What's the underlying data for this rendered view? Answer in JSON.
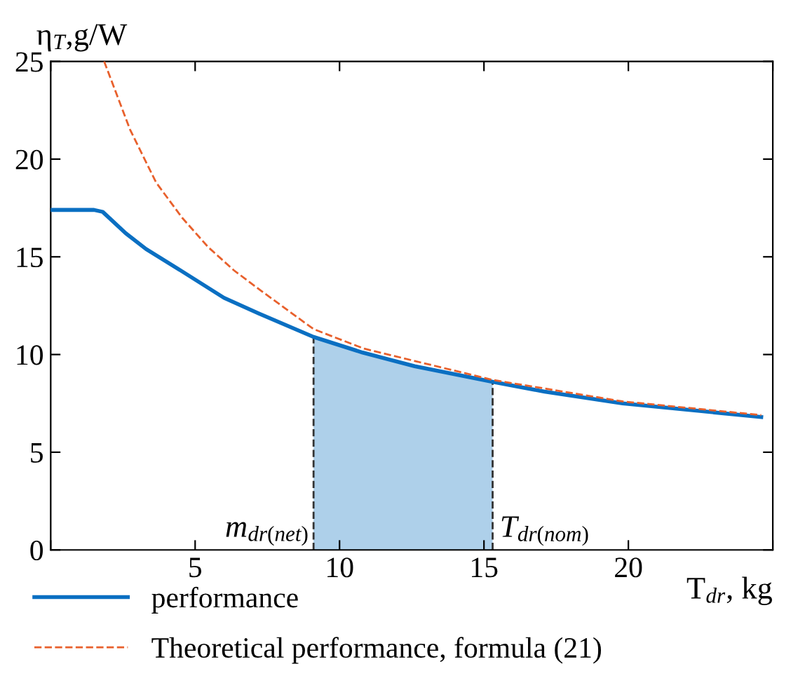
{
  "chart_data": {
    "type": "line",
    "ylabel": "η$_{T}$,g/W",
    "xlabel": "T$_{dr}$, kg",
    "xlim": [
      0,
      25
    ],
    "xticks": [
      {
        "value": 0,
        "label": null
      },
      5,
      10,
      15,
      20,
      {
        "value": 25,
        "label": null
      }
    ],
    "ylim": [
      0,
      25
    ],
    "yticks": [
      0,
      5,
      10,
      15,
      20,
      25
    ],
    "grid": false,
    "legend": "bottom",
    "line_style": "solid",
    "marker": "none",
    "series": [
      {
        "type": "area",
        "color": "#aed0ea",
        "x": [
          9.1,
          10.8,
          12.6,
          15.3
        ],
        "values": [
          10.9,
          10.1,
          9.4,
          8.6
        ]
      },
      {
        "name": "performance",
        "color": "#0a6fc2",
        "x": [
          0,
          1.5,
          1.8,
          2.6,
          3.3,
          4.5,
          6.0,
          7.2,
          9.1,
          10.8,
          12.6,
          15.3,
          17.1,
          19.8,
          24.6
        ],
        "values": [
          17.4,
          17.4,
          17.3,
          16.2,
          15.4,
          14.3,
          12.9,
          12.1,
          10.9,
          10.1,
          9.4,
          8.6,
          8.1,
          7.5,
          6.8
        ]
      },
      {
        "name": "Theoretical performance, formula (21)",
        "color": "#e8602c",
        "line_style": "dashed",
        "x": [
          1.85,
          2.75,
          3.65,
          4.55,
          5.45,
          6.35,
          7.25,
          9.1,
          10.85,
          15.3,
          19.8,
          24.6
        ],
        "values": [
          25,
          21.5,
          18.8,
          17.0,
          15.5,
          14.3,
          13.3,
          11.3,
          10.3,
          8.7,
          7.6,
          6.9
        ]
      }
    ],
    "ref_lines": [
      {
        "axis": "x",
        "value": 9.1,
        "label": "m$_{dr(net)}$",
        "line_style": "dashed",
        "color": "#333333"
      },
      {
        "axis": "x",
        "value": 15.3,
        "label": "T$_{dr(nom)}$",
        "line_style": "dashed",
        "color": "#333333"
      }
    ]
  }
}
